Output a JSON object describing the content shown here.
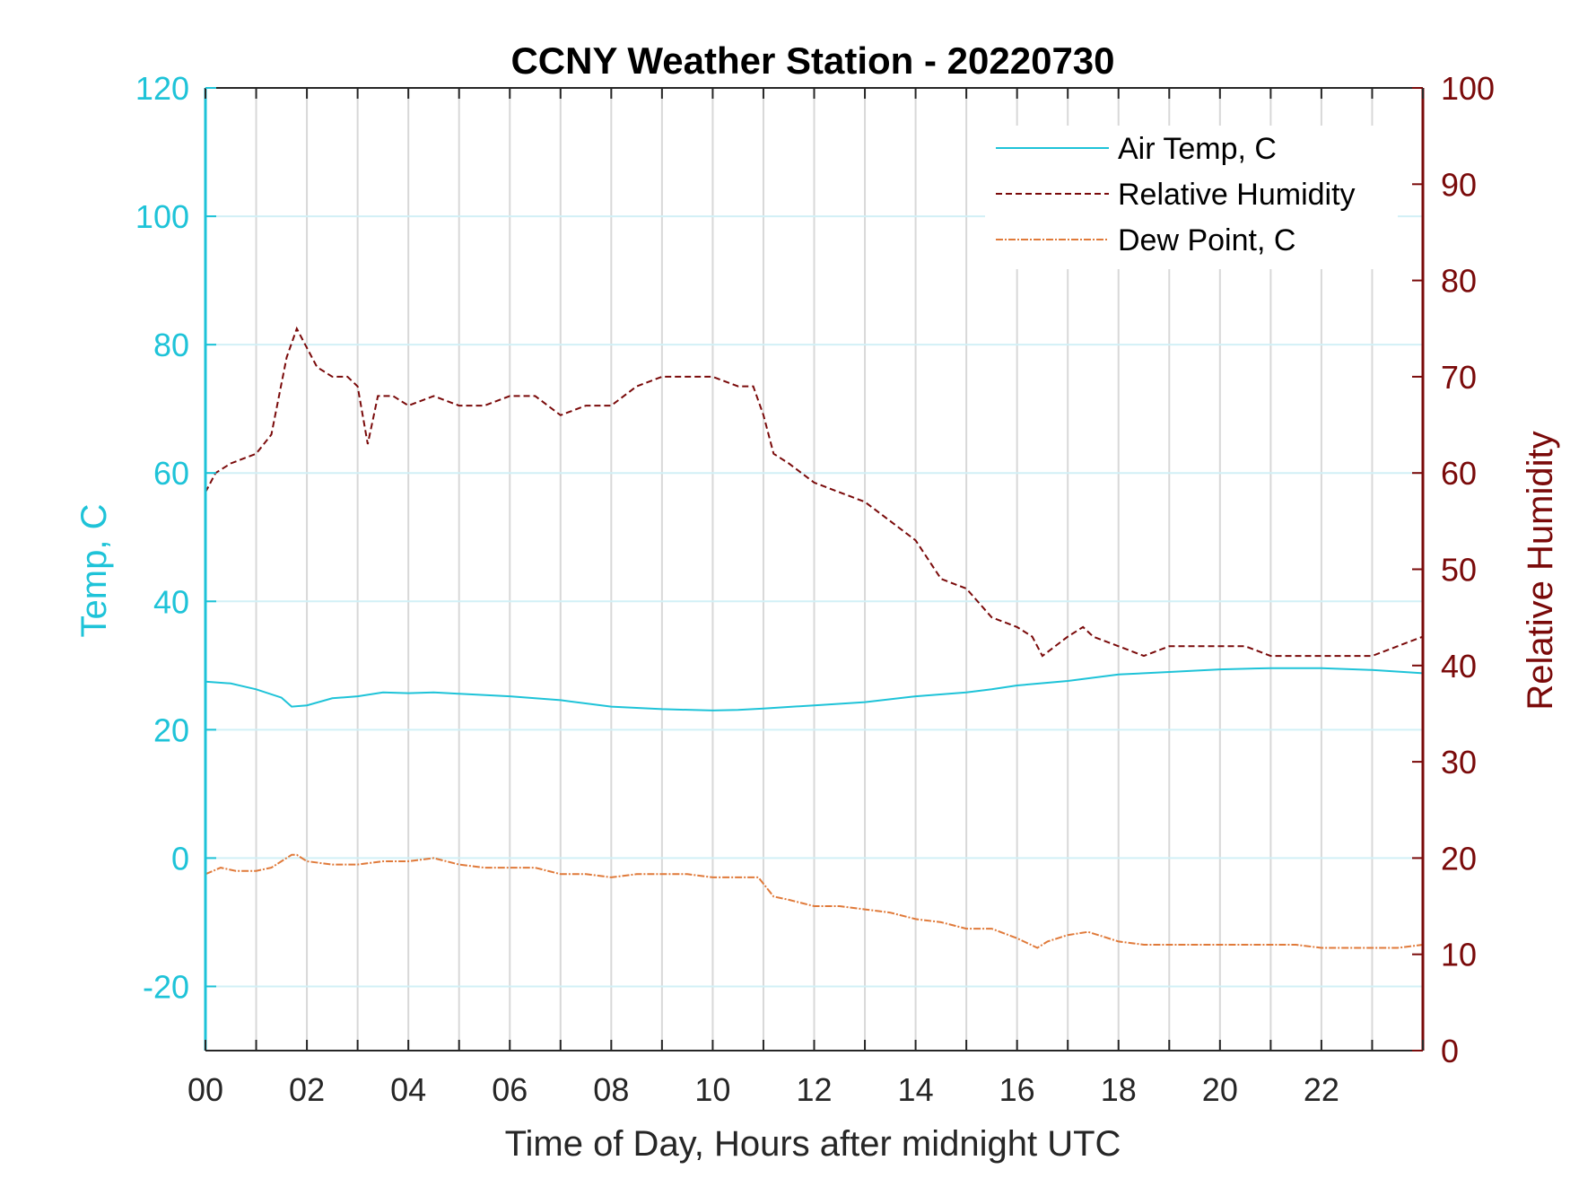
{
  "chart_data": {
    "type": "line",
    "title": "CCNY Weather Station - 20220730",
    "xlabel": "Time of Day, Hours after midnight UTC",
    "ylabel_left": "Temp, C",
    "ylabel_right": "Relative Humidity",
    "xlim": [
      0,
      24
    ],
    "ylim_left": [
      -30,
      120
    ],
    "ylim_right": [
      0,
      100
    ],
    "x_ticks": [
      0,
      2,
      4,
      6,
      8,
      10,
      12,
      14,
      16,
      18,
      20,
      22
    ],
    "x_tick_labels": [
      "00",
      "02",
      "04",
      "06",
      "08",
      "10",
      "12",
      "14",
      "16",
      "18",
      "20",
      "22"
    ],
    "y_left_ticks": [
      -20,
      0,
      20,
      40,
      60,
      80,
      100,
      120
    ],
    "y_right_ticks": [
      0,
      10,
      20,
      30,
      40,
      50,
      60,
      70,
      80,
      90,
      100
    ],
    "grid": true,
    "legend_position": "top-right",
    "colors": {
      "air_temp": "#1ec3d8",
      "relative_humidity": "#7a0a0a",
      "dew_point": "#e07a3a",
      "left_axis": "#1ec3d8",
      "right_axis": "#7a0a0a"
    },
    "series": [
      {
        "name": "Air Temp, C",
        "axis": "left",
        "style": "solid",
        "x": [
          0,
          0.5,
          1.0,
          1.5,
          1.7,
          2.0,
          2.5,
          3.0,
          3.5,
          4.0,
          4.5,
          5.0,
          6.0,
          7.0,
          8.0,
          9.0,
          10.0,
          10.5,
          11.0,
          12.0,
          13.0,
          14.0,
          15.0,
          15.5,
          16.0,
          17.0,
          18.0,
          19.0,
          20.0,
          21.0,
          22.0,
          23.0,
          24.0
        ],
        "values": [
          27.5,
          27.2,
          26.3,
          25.0,
          23.6,
          23.8,
          24.9,
          25.2,
          25.8,
          25.7,
          25.8,
          25.6,
          25.2,
          24.6,
          23.6,
          23.2,
          23.0,
          23.1,
          23.3,
          23.8,
          24.3,
          25.2,
          25.8,
          26.3,
          26.9,
          27.6,
          28.6,
          29.0,
          29.4,
          29.6,
          29.6,
          29.3,
          28.8
        ]
      },
      {
        "name": "Relative Humidity",
        "axis": "right",
        "style": "dashed",
        "x": [
          0,
          0.2,
          0.5,
          1.0,
          1.3,
          1.6,
          1.8,
          2.0,
          2.2,
          2.5,
          2.8,
          3.0,
          3.2,
          3.4,
          3.7,
          4.0,
          4.5,
          5.0,
          5.5,
          6.0,
          6.5,
          7.0,
          7.5,
          8.0,
          8.5,
          9.0,
          9.3,
          9.6,
          10.0,
          10.5,
          10.8,
          11.0,
          11.2,
          11.5,
          12.0,
          12.5,
          13.0,
          13.5,
          14.0,
          14.5,
          15.0,
          15.5,
          16.0,
          16.3,
          16.5,
          17.0,
          17.3,
          17.5,
          18.0,
          18.5,
          19.0,
          19.5,
          20.0,
          20.5,
          21.0,
          21.5,
          22.0,
          22.5,
          23.0,
          23.5,
          24.0
        ],
        "values": [
          58,
          60,
          61,
          62,
          64,
          72,
          75,
          73,
          71,
          70,
          70,
          69,
          63,
          68,
          68,
          67,
          68,
          67,
          67,
          68,
          68,
          66,
          67,
          67,
          69,
          70,
          70,
          70,
          70,
          69,
          69,
          66,
          62,
          61,
          59,
          58,
          57,
          55,
          53,
          49,
          48,
          45,
          44,
          43,
          41,
          43,
          44,
          43,
          42,
          41,
          42,
          42,
          42,
          42,
          41,
          41,
          41,
          41,
          41,
          42,
          43
        ]
      },
      {
        "name": "Dew Point, C",
        "axis": "left",
        "style": "dashdot",
        "x": [
          0,
          0.3,
          0.6,
          1.0,
          1.3,
          1.7,
          1.8,
          2.0,
          2.5,
          3.0,
          3.5,
          4.0,
          4.5,
          5.0,
          5.5,
          6.0,
          6.5,
          7.0,
          7.5,
          8.0,
          8.5,
          9.0,
          9.5,
          10.0,
          10.5,
          10.9,
          11.2,
          11.5,
          12.0,
          12.5,
          13.0,
          13.5,
          14.0,
          14.5,
          15.0,
          15.5,
          16.0,
          16.4,
          16.6,
          17.0,
          17.4,
          17.6,
          18.0,
          18.5,
          19.0,
          19.5,
          20.0,
          20.5,
          21.0,
          21.5,
          22.0,
          22.5,
          23.0,
          23.5,
          24.0
        ],
        "values": [
          -2.5,
          -1.5,
          -2.0,
          -2.0,
          -1.5,
          0.5,
          0.5,
          -0.5,
          -1.0,
          -1.0,
          -0.5,
          -0.5,
          0.0,
          -1.0,
          -1.5,
          -1.5,
          -1.5,
          -2.5,
          -2.5,
          -3.0,
          -2.5,
          -2.5,
          -2.5,
          -3.0,
          -3.0,
          -3.0,
          -6.0,
          -6.5,
          -7.5,
          -7.5,
          -8.0,
          -8.5,
          -9.5,
          -10.0,
          -11.0,
          -11.0,
          -12.5,
          -14.0,
          -13.0,
          -12.0,
          -11.5,
          -12.0,
          -13.0,
          -13.5,
          -13.5,
          -13.5,
          -13.5,
          -13.5,
          -13.5,
          -13.5,
          -14.0,
          -14.0,
          -14.0,
          -14.0,
          -13.5
        ]
      }
    ],
    "legend": [
      {
        "label": "Air Temp, C",
        "style": "solid"
      },
      {
        "label": "Relative Humidity",
        "style": "dashed"
      },
      {
        "label": "Dew Point, C",
        "style": "dashdot"
      }
    ]
  }
}
